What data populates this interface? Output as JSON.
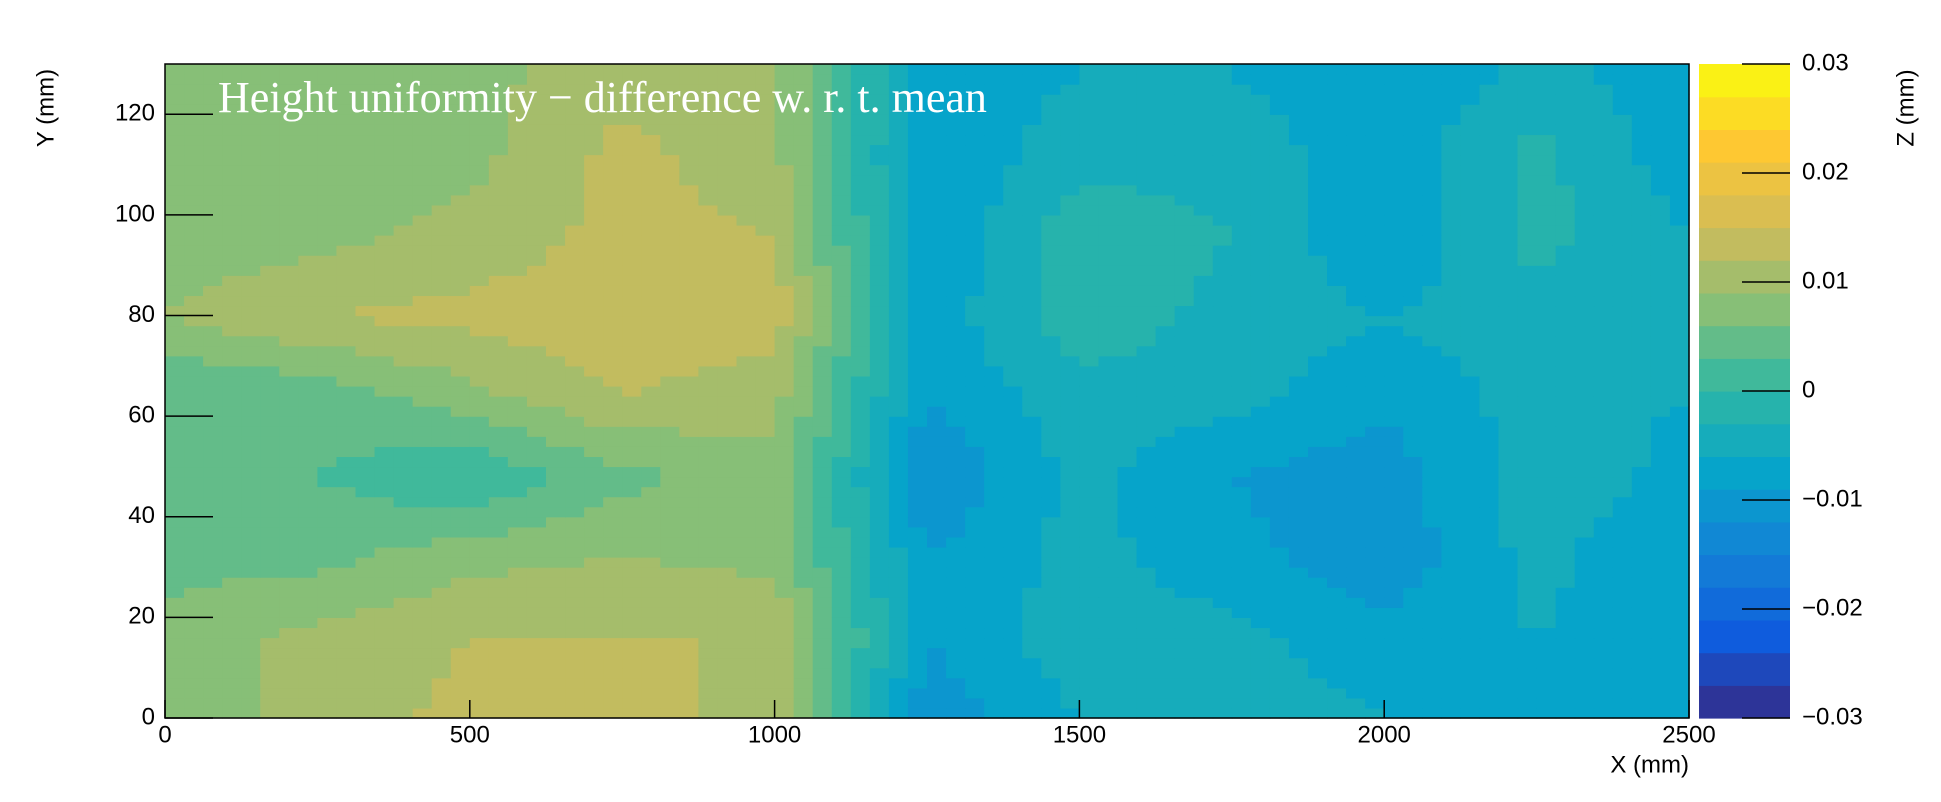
{
  "chart_data": {
    "type": "contour",
    "title": "Height uniformity  − difference w. r. t. mean",
    "x_label": "X (mm)",
    "y_label": "Y (mm)",
    "z_label": "Z (mm)",
    "x": [
      0,
      250,
      500,
      750,
      1000,
      1250,
      1500,
      1750,
      2000,
      2250,
      2500
    ],
    "y": [
      0,
      16,
      32,
      48,
      64,
      80,
      96,
      112,
      128
    ],
    "z": [
      [
        0.007,
        0.01,
        0.013,
        0.013,
        0.011,
        -0.011,
        -0.006,
        -0.004,
        -0.006,
        -0.006,
        -0.007
      ],
      [
        0.007,
        0.01,
        0.012,
        0.012,
        0.012,
        -0.009,
        -0.004,
        -0.005,
        -0.008,
        -0.006,
        -0.008
      ],
      [
        0.005,
        0.005,
        0.008,
        0.009,
        0.008,
        -0.009,
        -0.005,
        -0.008,
        -0.011,
        -0.005,
        -0.009
      ],
      [
        0.005,
        0.003,
        0.0,
        0.005,
        0.008,
        -0.012,
        -0.005,
        -0.009,
        -0.011,
        -0.004,
        -0.007
      ],
      [
        0.003,
        0.004,
        0.008,
        0.012,
        0.01,
        -0.009,
        -0.004,
        -0.005,
        -0.008,
        -0.005,
        -0.006
      ],
      [
        0.009,
        0.012,
        0.013,
        0.014,
        0.014,
        -0.008,
        -0.001,
        -0.004,
        -0.006,
        -0.004,
        -0.006
      ],
      [
        0.007,
        0.008,
        0.01,
        0.013,
        0.012,
        -0.009,
        -0.001,
        -0.003,
        -0.009,
        -0.002,
        -0.006
      ],
      [
        0.007,
        0.007,
        0.008,
        0.013,
        0.01,
        -0.009,
        -0.004,
        -0.004,
        -0.008,
        -0.002,
        -0.008
      ],
      [
        0.007,
        0.007,
        0.008,
        0.011,
        0.01,
        -0.008,
        -0.006,
        -0.006,
        -0.009,
        -0.005,
        -0.008
      ]
    ],
    "xlim": [
      0,
      2500
    ],
    "ylim": [
      0,
      130
    ],
    "zlim": [
      -0.03,
      0.03
    ],
    "xticks": [
      0,
      500,
      1000,
      1500,
      2000,
      2500
    ],
    "yticks": [
      0,
      20,
      40,
      60,
      80,
      100,
      120
    ],
    "zticks": [
      {
        "value": -0.03,
        "label": "−0.03"
      },
      {
        "value": -0.02,
        "label": "−0.02"
      },
      {
        "value": -0.01,
        "label": "−0.01"
      },
      0,
      0.01,
      0.02,
      0.03
    ],
    "contour_levels": 20,
    "palette": [
      "#352a87",
      "#0f5cdd",
      "#1481d6",
      "#06a4ca",
      "#2eb7a4",
      "#87bf77",
      "#d1bb59",
      "#fec832",
      "#f9fb0e"
    ]
  }
}
